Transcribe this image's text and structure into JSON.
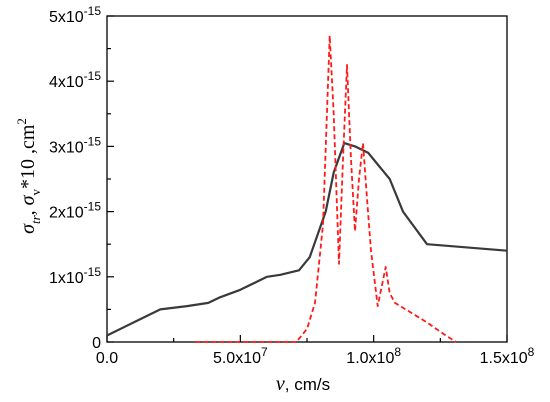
{
  "chart_data": {
    "type": "line",
    "title": "",
    "xlabel": {
      "symbol": "v",
      "unit": ", cm/s"
    },
    "ylabel": {
      "symbol1": "σ",
      "sub1": "tr",
      "sep": ", ",
      "symbol2": "σ",
      "sub2": "v",
      "mult": "*10 ,cm",
      "sup": "2"
    },
    "xlim": [
      0,
      150000000
    ],
    "ylim": [
      0,
      5e-15
    ],
    "x_ticks": [
      {
        "value": 0,
        "mantissa": "0.0",
        "exp": ""
      },
      {
        "value": 50000000,
        "mantissa": "5.0x10",
        "exp": "7"
      },
      {
        "value": 100000000,
        "mantissa": "1.0x10",
        "exp": "8"
      },
      {
        "value": 150000000,
        "mantissa": "1.5x10",
        "exp": "8"
      }
    ],
    "y_ticks": [
      {
        "value": 0,
        "mantissa": "0",
        "exp": ""
      },
      {
        "value": 1e-15,
        "mantissa": "1x10",
        "exp": "-15"
      },
      {
        "value": 2e-15,
        "mantissa": "2x10",
        "exp": "-15"
      },
      {
        "value": 3e-15,
        "mantissa": "3x10",
        "exp": "-15"
      },
      {
        "value": 4e-15,
        "mantissa": "4x10",
        "exp": "-15"
      },
      {
        "value": 5e-15,
        "mantissa": "5x10",
        "exp": "-15"
      }
    ],
    "grid": false,
    "legend": "none",
    "series": [
      {
        "color": "#3a3a3a",
        "style": "solid",
        "points": [
          [
            0,
            1e-16
          ],
          [
            10000000,
            3e-16
          ],
          [
            20000000,
            5e-16
          ],
          [
            30000000,
            5.5e-16
          ],
          [
            38000000,
            6e-16
          ],
          [
            42000000,
            6.8e-16
          ],
          [
            50000000,
            8e-16
          ],
          [
            60000000,
            1e-15
          ],
          [
            65000000,
            1.03e-15
          ],
          [
            72000000,
            1.1e-15
          ],
          [
            76000000,
            1.3e-15
          ],
          [
            82000000,
            2e-15
          ],
          [
            85000000,
            2.6e-15
          ],
          [
            89000000,
            3.05e-15
          ],
          [
            93000000,
            3e-15
          ],
          [
            98000000,
            2.9e-15
          ],
          [
            102000000,
            2.7e-15
          ],
          [
            106000000,
            2.5e-15
          ],
          [
            111000000,
            2e-15
          ],
          [
            120000000,
            1.5e-15
          ],
          [
            150000000,
            1.4e-15
          ]
        ]
      },
      {
        "color": "#ff1a1a",
        "style": "dashed",
        "points": [
          [
            33000000,
            0
          ],
          [
            71000000,
            0
          ],
          [
            75000000,
            2e-16
          ],
          [
            78000000,
            6e-16
          ],
          [
            81000000,
            1.8e-15
          ],
          [
            83500000,
            4.7e-15
          ],
          [
            85000000,
            3.5e-15
          ],
          [
            87000000,
            1.2e-15
          ],
          [
            88500000,
            2.8e-15
          ],
          [
            90000000,
            4.25e-15
          ],
          [
            91500000,
            2.8e-15
          ],
          [
            93000000,
            1.7e-15
          ],
          [
            94500000,
            2.5e-15
          ],
          [
            96000000,
            3.05e-15
          ],
          [
            97500000,
            2.2e-15
          ],
          [
            99000000,
            1.4e-15
          ],
          [
            101500000,
            5.5e-16
          ],
          [
            104500000,
            1.15e-15
          ],
          [
            106000000,
            7.5e-16
          ],
          [
            108000000,
            6e-16
          ],
          [
            112000000,
            5e-16
          ],
          [
            120000000,
            3e-16
          ],
          [
            127000000,
            1e-16
          ],
          [
            131000000,
            0
          ]
        ]
      }
    ]
  }
}
